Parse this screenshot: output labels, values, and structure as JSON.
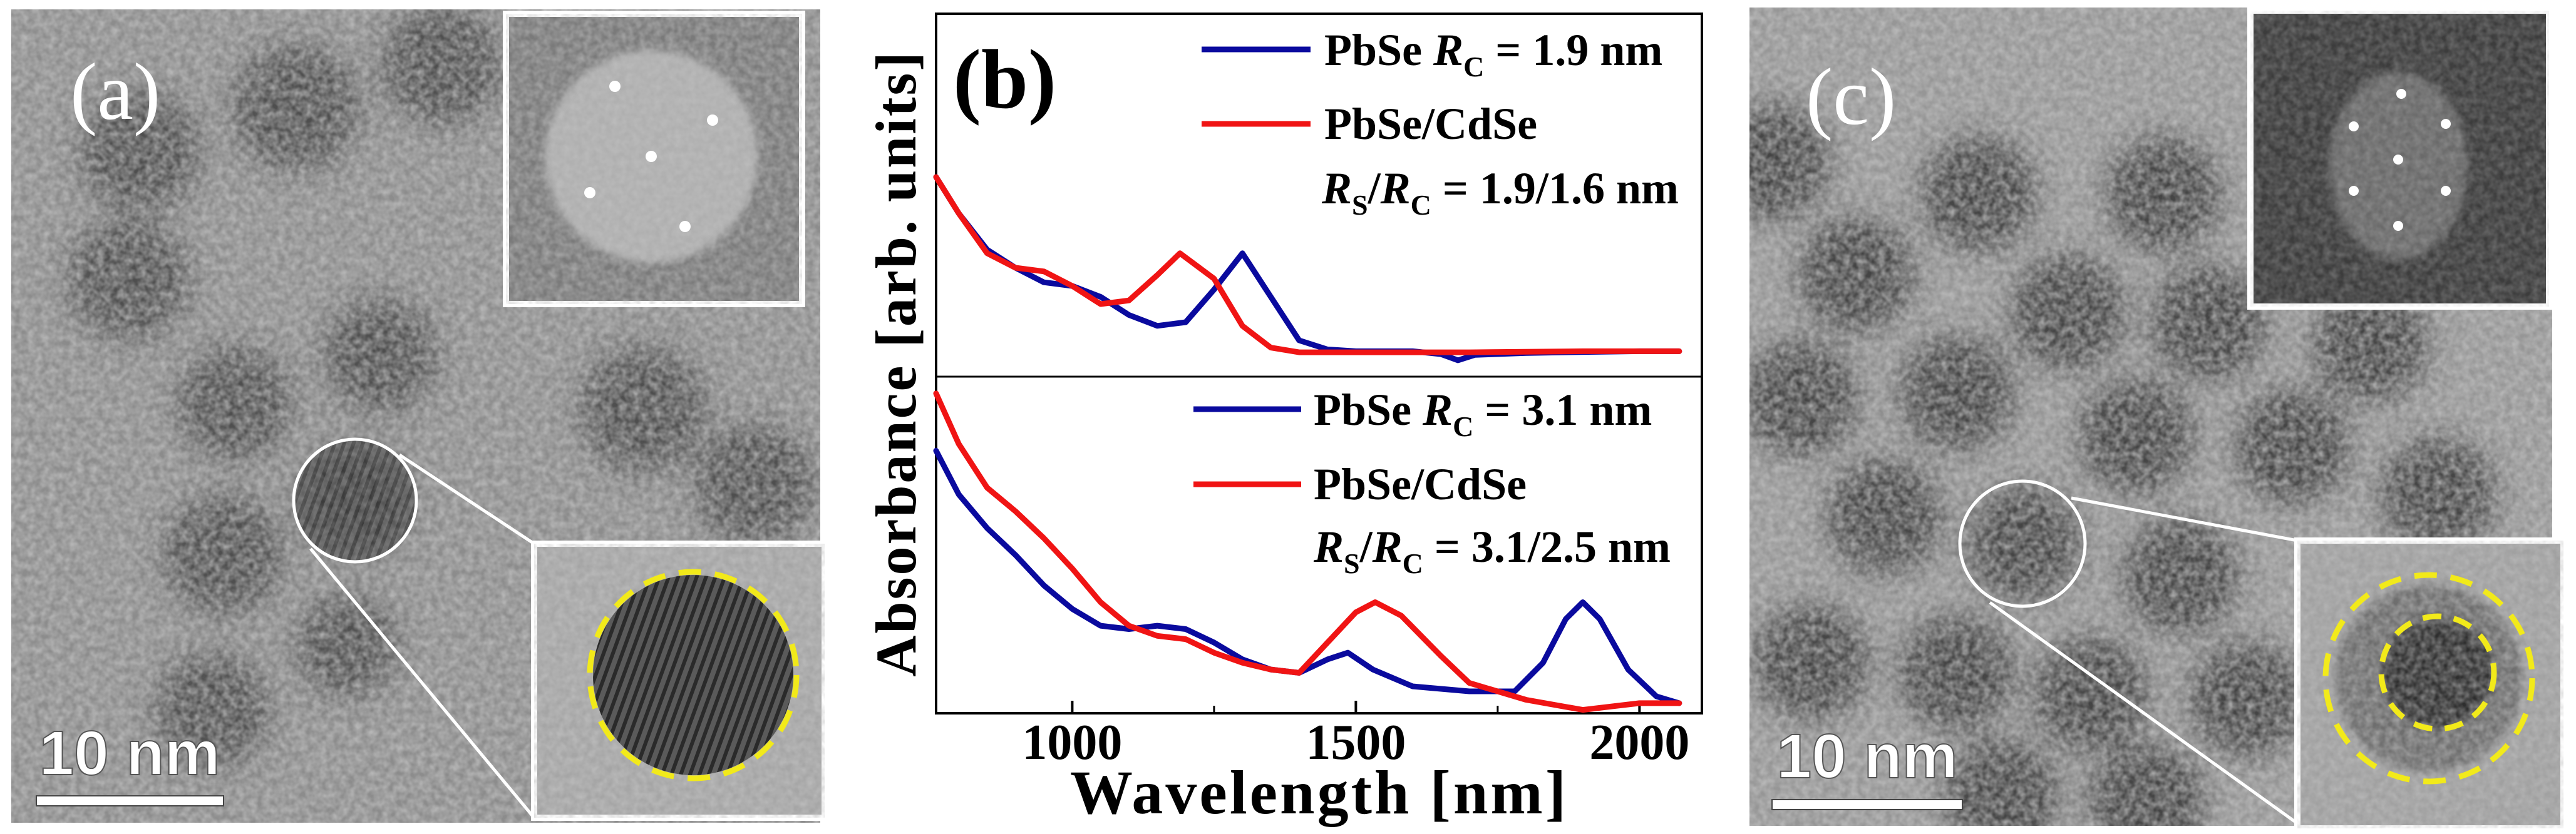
{
  "panels": {
    "a": {
      "label": "(a)",
      "scale_bar": "10 nm"
    },
    "b": {
      "label": "(b)"
    },
    "c": {
      "label": "(c)",
      "scale_bar": "10 nm"
    }
  },
  "colors": {
    "pbse": "#0a0a9e",
    "pbse_cdse": "#f01414",
    "dashed_circle": "#f2ea1a"
  },
  "chart_data": {
    "type": "line",
    "xlabel": "Wavelength [nm]",
    "ylabel": "Absorbance [arb. units]",
    "xlim": [
      760,
      2110
    ],
    "xticks": [
      1000,
      1500,
      2000
    ],
    "xtick_labels": [
      "1000",
      "1500",
      "2000"
    ],
    "minor_xticks": [
      1250,
      1750
    ],
    "grid": false,
    "subplots": [
      {
        "position": "top",
        "ylim": [
          0,
          1
        ],
        "legend": [
          {
            "series": "PbSe",
            "name": "PbSe ",
            "var": "R",
            "sub": "C",
            "value": " = 1.9 nm"
          },
          {
            "series": "PbSe/CdSe",
            "name": "PbSe/CdSe",
            "line2_var1": "R",
            "line2_sub1": "S",
            "line2_slash": "/",
            "line2_var2": "R",
            "line2_sub2": "C",
            "value": " = 1.9/1.6 nm"
          }
        ],
        "series": [
          {
            "name": "PbSe R_C = 1.9 nm",
            "color": "#0a0a9e",
            "x": [
              760,
              800,
              850,
              900,
              950,
              1000,
              1050,
              1100,
              1150,
              1200,
              1250,
              1300,
              1350,
              1400,
              1450,
              1500,
              1600,
              1650,
              1680,
              1710,
              1800,
              1900,
              2000,
              2070
            ],
            "y": [
              0.55,
              0.45,
              0.35,
              0.3,
              0.26,
              0.25,
              0.22,
              0.17,
              0.14,
              0.15,
              0.24,
              0.34,
              0.22,
              0.1,
              0.075,
              0.07,
              0.07,
              0.062,
              0.045,
              0.06,
              0.065,
              0.068,
              0.07,
              0.07
            ]
          },
          {
            "name": "PbSe/CdSe R_S/R_C = 1.9/1.6 nm",
            "color": "#f01414",
            "x": [
              760,
              800,
              850,
              900,
              950,
              1000,
              1050,
              1100,
              1150,
              1190,
              1250,
              1300,
              1350,
              1400,
              1500,
              1700,
              1900,
              2070
            ],
            "y": [
              0.55,
              0.45,
              0.34,
              0.3,
              0.29,
              0.25,
              0.2,
              0.21,
              0.28,
              0.34,
              0.27,
              0.14,
              0.08,
              0.067,
              0.067,
              0.067,
              0.07,
              0.07
            ]
          }
        ]
      },
      {
        "position": "bottom",
        "ylim": [
          0,
          1
        ],
        "legend": [
          {
            "series": "PbSe",
            "name": "PbSe ",
            "var": "R",
            "sub": "C",
            "value": " = 3.1 nm"
          },
          {
            "series": "PbSe/CdSe",
            "name": "PbSe/CdSe",
            "line2_var1": "R",
            "line2_sub1": "S",
            "line2_slash": "/",
            "line2_var2": "R",
            "line2_sub2": "C",
            "value": " = 3.1/2.5 nm"
          }
        ],
        "series": [
          {
            "name": "PbSe R_C = 3.1 nm",
            "color": "#0a0a9e",
            "x": [
              760,
              800,
              850,
              900,
              950,
              1000,
              1050,
              1100,
              1150,
              1200,
              1250,
              1300,
              1350,
              1400,
              1450,
              1486,
              1530,
              1600,
              1700,
              1780,
              1830,
              1870,
              1900,
              1930,
              1980,
              2030,
              2070
            ],
            "y": [
              0.78,
              0.65,
              0.55,
              0.47,
              0.38,
              0.31,
              0.26,
              0.25,
              0.26,
              0.25,
              0.21,
              0.16,
              0.13,
              0.12,
              0.16,
              0.18,
              0.13,
              0.08,
              0.065,
              0.065,
              0.15,
              0.28,
              0.33,
              0.28,
              0.13,
              0.05,
              0.03
            ]
          },
          {
            "name": "PbSe/CdSe R_S/R_C = 3.1/2.5 nm",
            "color": "#f01414",
            "x": [
              760,
              800,
              850,
              900,
              950,
              1000,
              1050,
              1100,
              1150,
              1200,
              1250,
              1300,
              1350,
              1400,
              1450,
              1500,
              1534,
              1580,
              1650,
              1700,
              1800,
              1900,
              1950,
              2000,
              2070
            ],
            "y": [
              0.95,
              0.8,
              0.67,
              0.6,
              0.52,
              0.43,
              0.33,
              0.26,
              0.23,
              0.22,
              0.18,
              0.15,
              0.13,
              0.12,
              0.21,
              0.3,
              0.33,
              0.29,
              0.17,
              0.09,
              0.04,
              0.01,
              0.02,
              0.03,
              0.03
            ]
          }
        ]
      }
    ]
  }
}
